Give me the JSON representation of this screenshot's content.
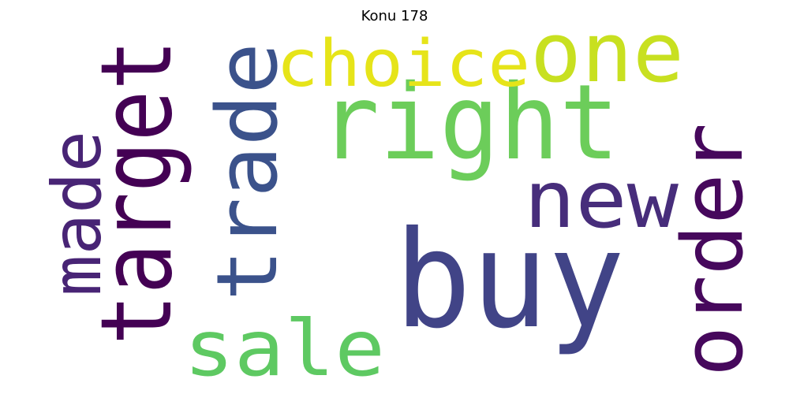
{
  "title": "Konu 178",
  "words": [
    {
      "text": "buy",
      "color": "#414487"
    },
    {
      "text": "right",
      "color": "#6ccd5a"
    },
    {
      "text": "target",
      "color": "#440154"
    },
    {
      "text": "order",
      "color": "#46085c"
    },
    {
      "text": "trade",
      "color": "#3b528b"
    },
    {
      "text": "new",
      "color": "#472d7b"
    },
    {
      "text": "sale",
      "color": "#5ec962"
    },
    {
      "text": "one",
      "color": "#c8e020"
    },
    {
      "text": "choice",
      "color": "#e6e419"
    },
    {
      "text": "made",
      "color": "#482475"
    }
  ]
}
